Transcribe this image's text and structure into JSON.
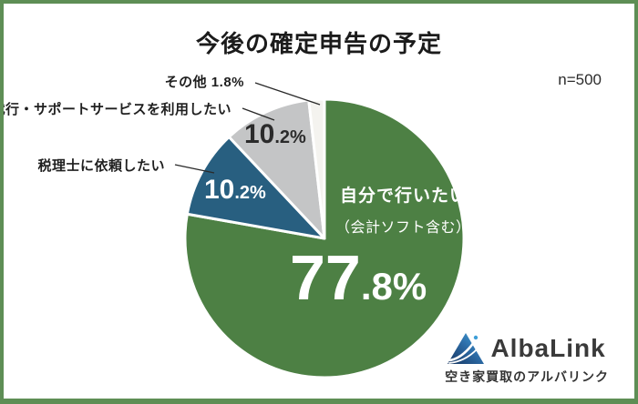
{
  "frame": {
    "border_color": "#5e8e55",
    "background": "#ffffff"
  },
  "header": {
    "title": "今後の確定申告の予定",
    "sample_size": "n=500"
  },
  "chart_data": {
    "type": "pie",
    "title": "今後の確定申告の予定",
    "sample_size": "n=500",
    "unit": "%",
    "start_angle_deg": 0,
    "direction": "clockwise",
    "stroke_color": "#ffffff",
    "slices": [
      {
        "label": "自分で行いたい（会計ソフト含む）",
        "value": 77.8,
        "color": "#4d8044",
        "text_color": "#ffffff"
      },
      {
        "label": "税理士に依頼したい",
        "value": 10.2,
        "color": "#285f80",
        "text_color": "#ffffff"
      },
      {
        "label": "代行・サポートサービスを利用したい",
        "value": 10.2,
        "color": "#c4c5c6",
        "text_color": "#2b2b2b"
      },
      {
        "label": "その他",
        "value": 1.8,
        "color": "#f4f3ef",
        "text_color": "#1f1f1f"
      }
    ],
    "legend_position": "callouts"
  },
  "labels": {
    "green_line1": "自分で行いたい",
    "green_line2": "（会計ソフト含む）",
    "green_pct": {
      "main": "77",
      "sub": ".8%"
    },
    "blue_pct": {
      "main": "10",
      "sub": ".2%"
    },
    "gray_pct": {
      "main": "10",
      "sub": ".2%"
    },
    "callout_other": "その他 1.8%",
    "callout_agency": "代行・サポートサービスを利用したい",
    "callout_tax": "税理士に依頼したい"
  },
  "footer": {
    "brand": "AlbaLink",
    "tagline": "空き家買取のアルバリンク"
  }
}
